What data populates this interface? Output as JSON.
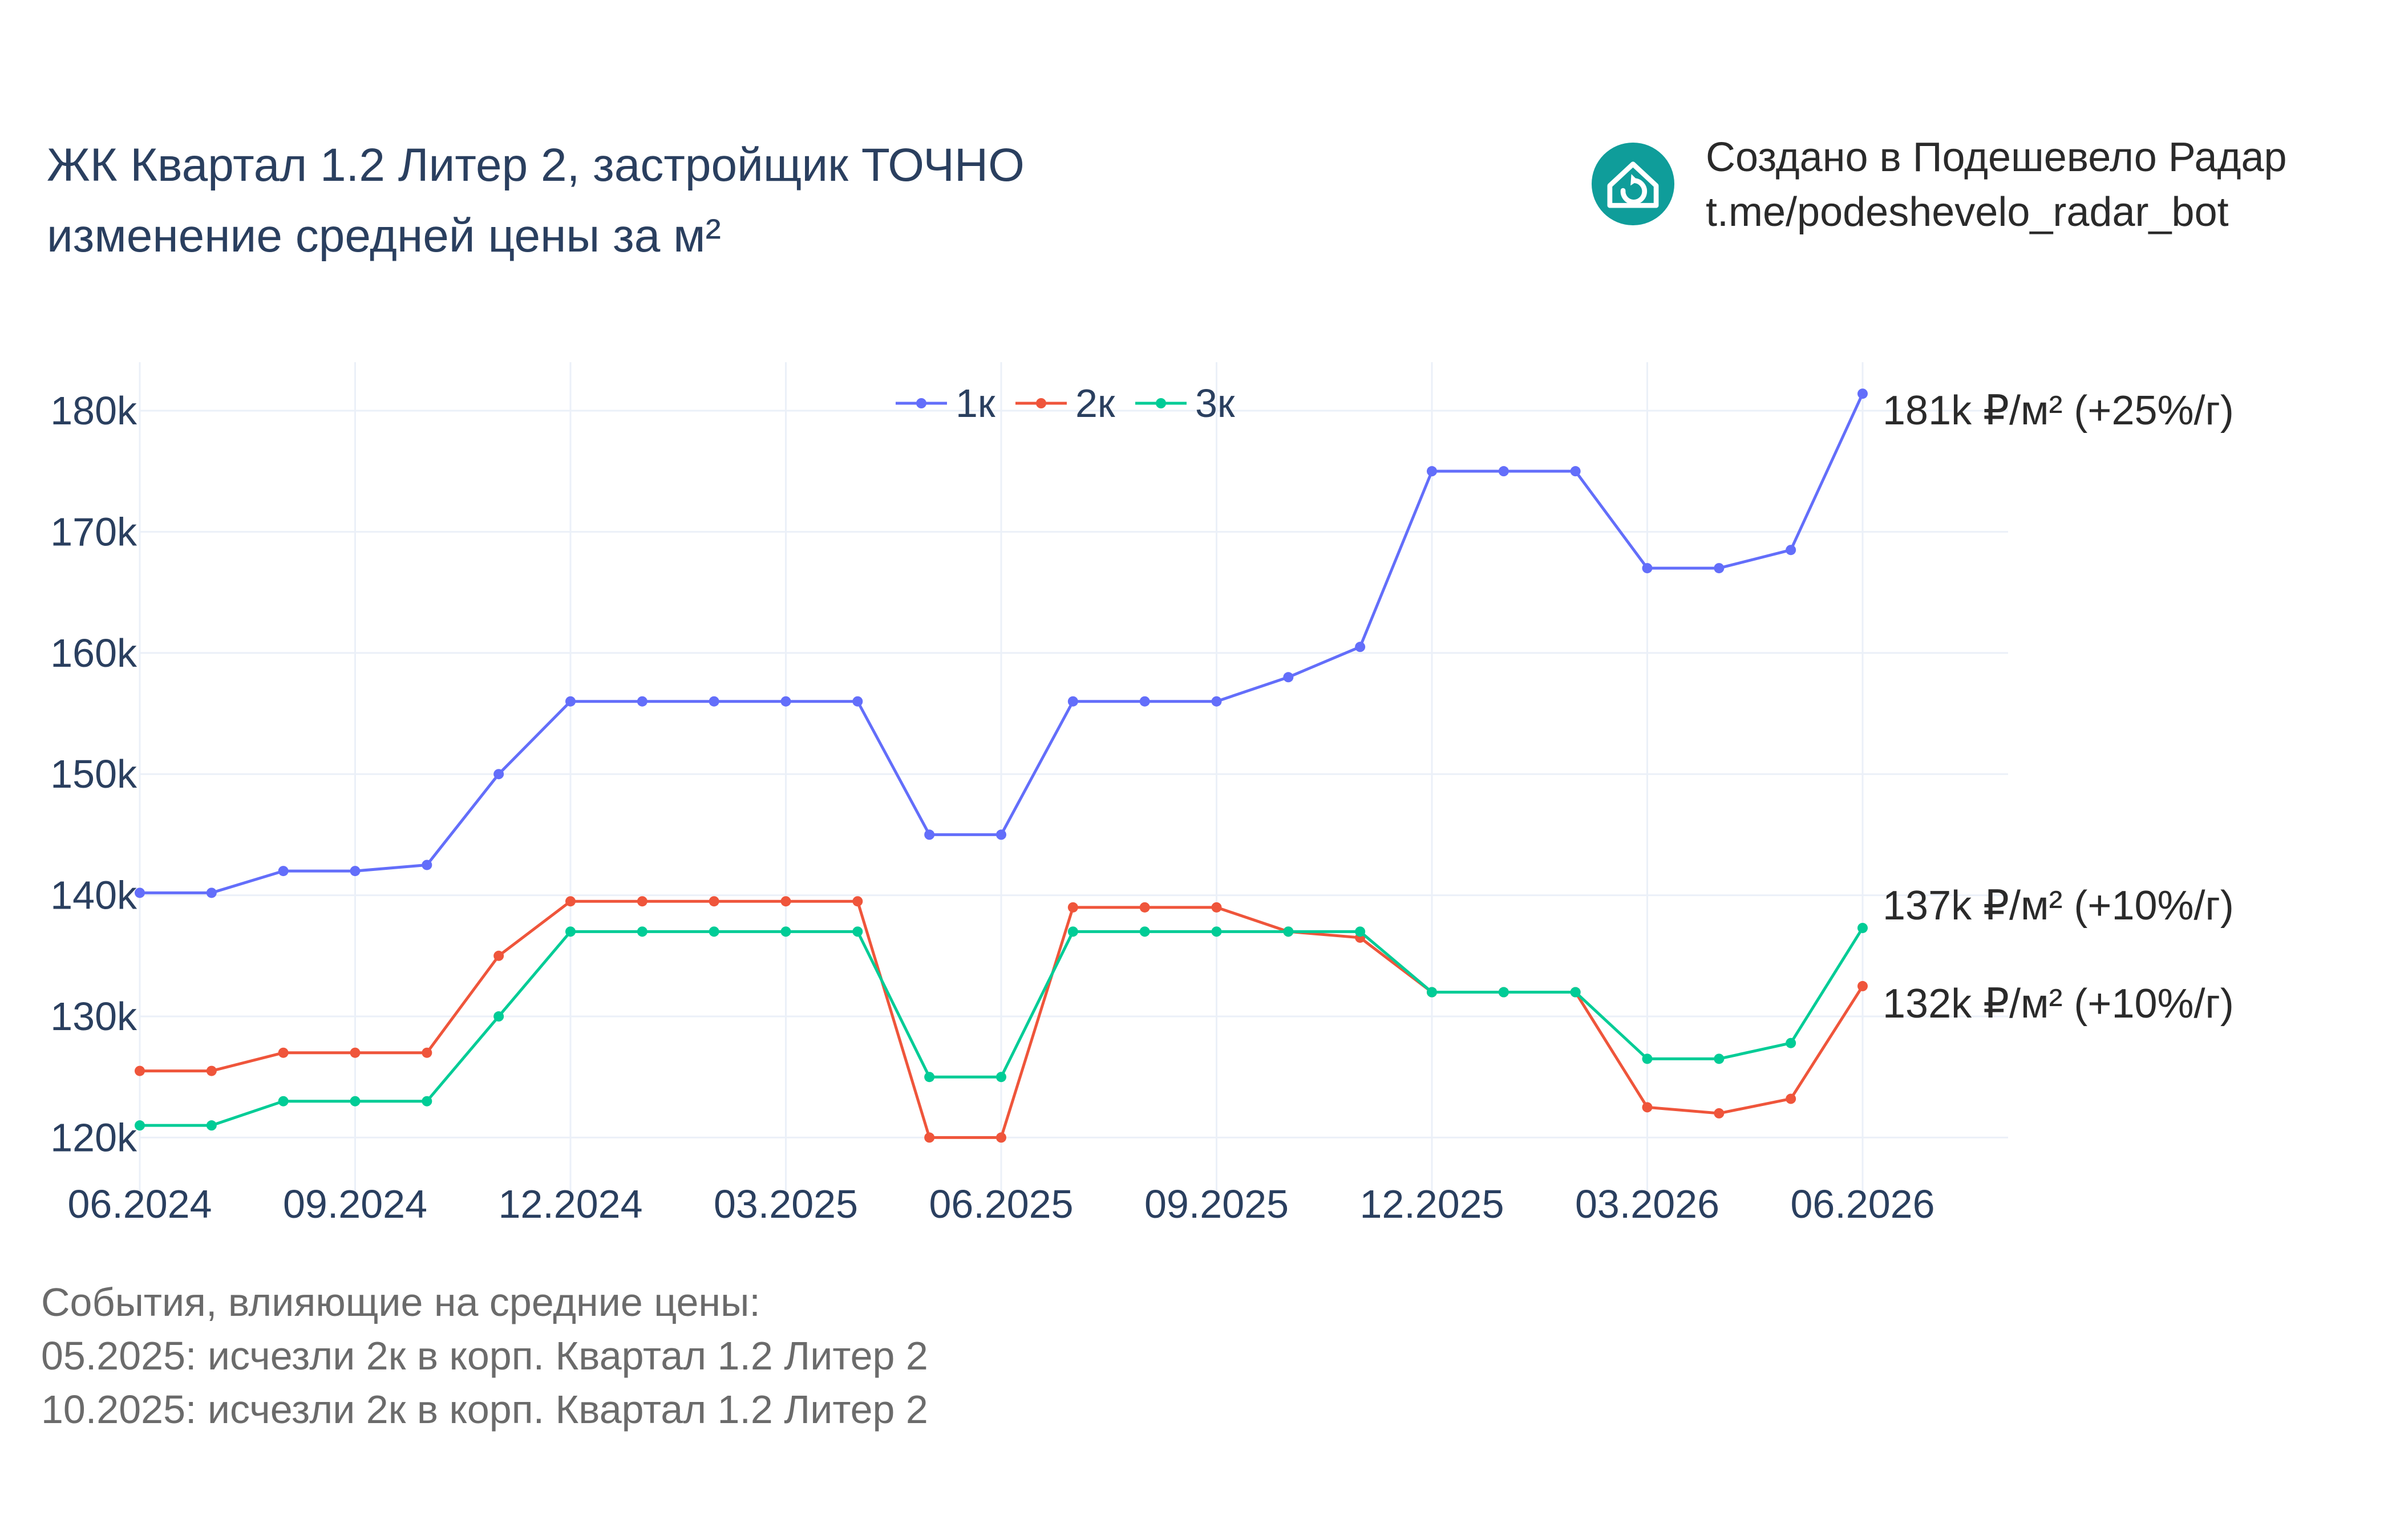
{
  "header": {
    "title_line1": "ЖК Квартал 1.2 Литер 2, застройщик ТОЧНО",
    "title_line2": "изменение средней цены за м²"
  },
  "credit": {
    "line1": "Создано в Подешевело Радар",
    "line2": "t.me/podeshevelo_radar_bot",
    "logo_icon": "house-refresh-icon",
    "logo_color": "#0f9d9a"
  },
  "events": {
    "heading": "События, влияющие на средние цены:",
    "items": [
      "05.2025: исчезли 2к в корп. Квартал 1.2 Литер 2",
      "10.2025: исчезли 2к в корп. Квартал 1.2 Литер 2"
    ]
  },
  "chart_data": {
    "type": "line",
    "title": "ЖК Квартал 1.2 Литер 2, застройщик ТОЧНО изменение средней цены за м²",
    "xlabel": "",
    "ylabel": "",
    "x_start": "06.2024",
    "x": [
      "06.2024",
      "07.2024",
      "08.2024",
      "09.2024",
      "10.2024",
      "11.2024",
      "12.2024",
      "01.2025",
      "02.2025",
      "03.2025",
      "04.2025",
      "05.2025",
      "06.2025",
      "07.2025",
      "08.2025",
      "09.2025",
      "10.2025",
      "11.2025",
      "12.2025",
      "01.2026",
      "02.2026",
      "03.2026",
      "04.2026",
      "05.2026",
      "06.2026"
    ],
    "xticks": [
      "06.2024",
      "09.2024",
      "12.2024",
      "03.2025",
      "06.2025",
      "09.2025",
      "12.2025",
      "03.2026",
      "06.2026"
    ],
    "yticks": [
      "120k",
      "130k",
      "140k",
      "150k",
      "160k",
      "170k",
      "180k"
    ],
    "ytick_values": [
      120000,
      130000,
      140000,
      150000,
      160000,
      170000,
      180000
    ],
    "ylim": [
      115500,
      184000
    ],
    "grid": true,
    "legend_placement": "top-center",
    "series": [
      {
        "name": "1к",
        "color": "#636efa",
        "values": [
          140200,
          140200,
          142000,
          142000,
          142500,
          150000,
          156000,
          156000,
          156000,
          156000,
          156000,
          145000,
          145000,
          156000,
          156000,
          156000,
          158000,
          160500,
          175000,
          175000,
          175000,
          167000,
          167000,
          168500,
          181400
        ],
        "end_label": "181k ₽/м² (+25%/г)"
      },
      {
        "name": "2к",
        "color": "#ef553b",
        "values": [
          125500,
          125500,
          127000,
          127000,
          127000,
          135000,
          139500,
          139500,
          139500,
          139500,
          139500,
          120000,
          120000,
          139000,
          139000,
          139000,
          137000,
          136500,
          132000,
          132000,
          132000,
          122500,
          122000,
          123200,
          132500
        ],
        "end_label": "132k ₽/м² (+10%/г)"
      },
      {
        "name": "3к",
        "color": "#00cc96",
        "values": [
          121000,
          121000,
          123000,
          123000,
          123000,
          130000,
          137000,
          137000,
          137000,
          137000,
          137000,
          125000,
          125000,
          137000,
          137000,
          137000,
          137000,
          137000,
          132000,
          132000,
          132000,
          126500,
          126500,
          127800,
          137300
        ],
        "end_label": "137k ₽/м² (+10%/г)"
      }
    ]
  }
}
